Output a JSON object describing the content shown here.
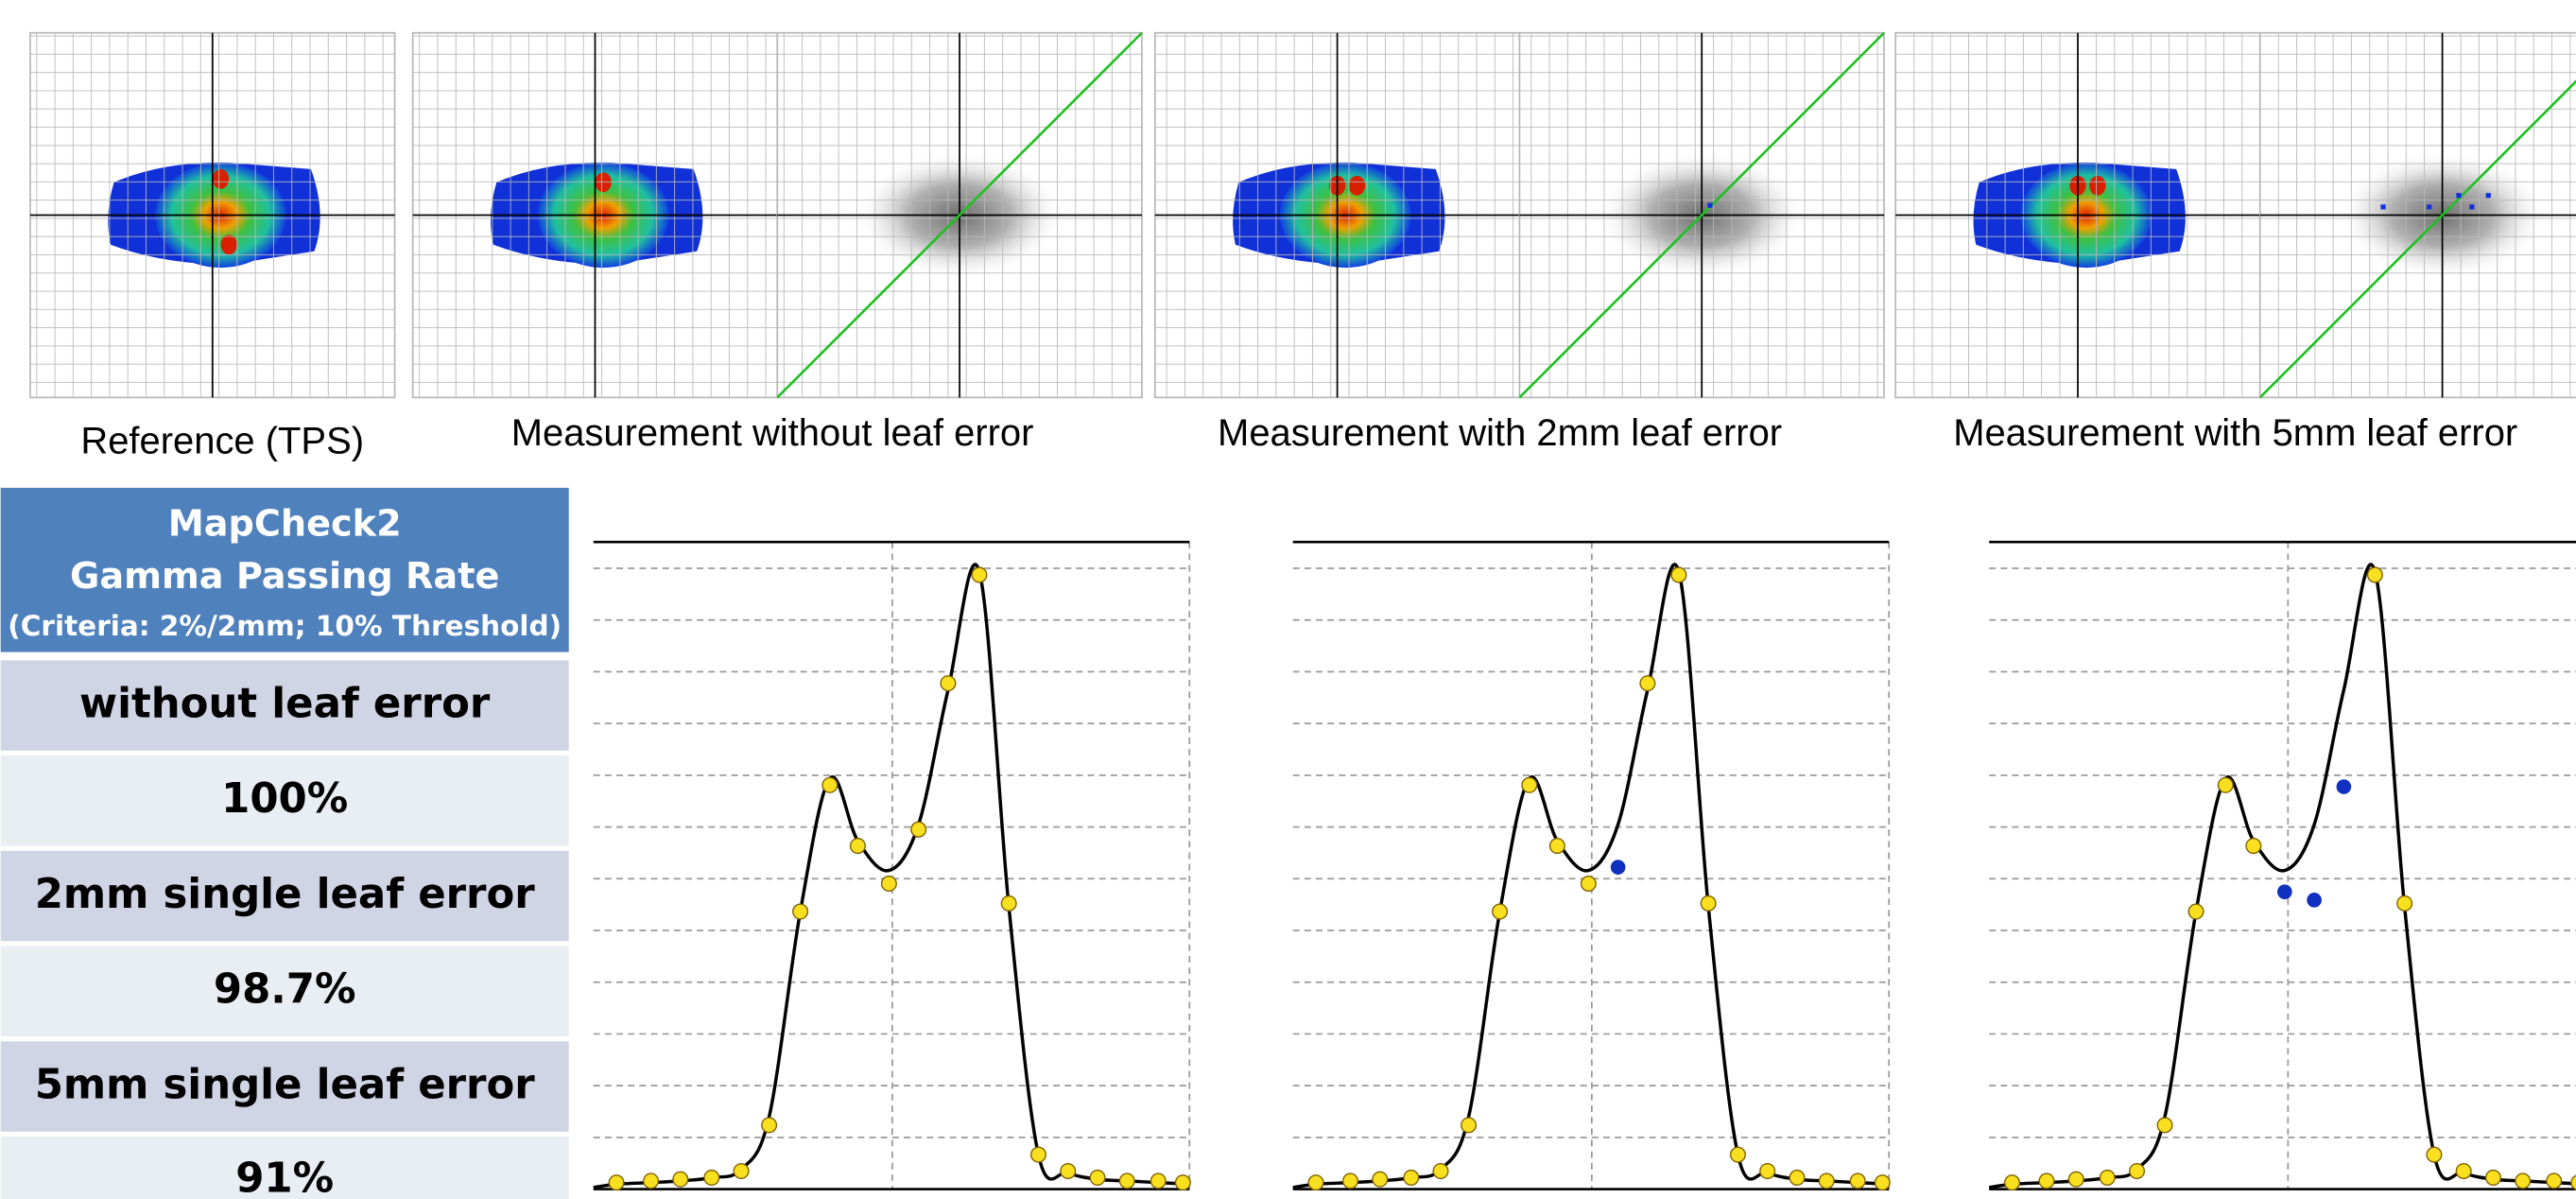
{
  "images": [
    {
      "caption": "Reference (TPS)"
    },
    {
      "caption": "Measurement without leaf error"
    },
    {
      "caption": "Measurement with 2mm leaf error"
    },
    {
      "caption": "Measurement with 5mm leaf error"
    }
  ],
  "table": {
    "header": [
      "MapCheck2",
      "Gamma Passing Rate",
      "(Criteria: 2%/2mm; 10% Threshold)"
    ],
    "rows": [
      [
        "without leaf error",
        "100%"
      ],
      [
        "2mm single leaf error",
        "98.7%"
      ],
      [
        "5mm single leaf error",
        "91%"
      ]
    ]
  }
}
